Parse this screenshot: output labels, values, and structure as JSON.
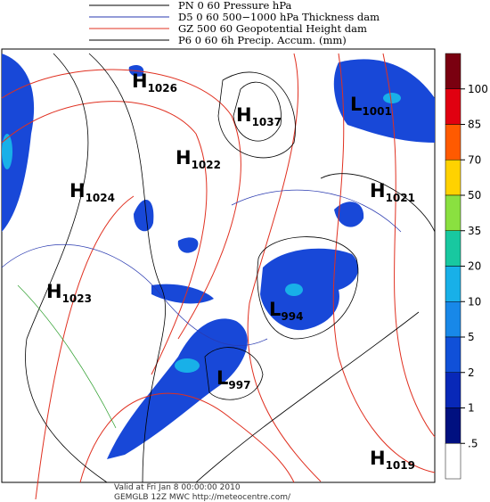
{
  "legend": [
    {
      "label": "PN 0 60 Pressure hPa",
      "color": "#000000"
    },
    {
      "label": "D5 0 60 500−1000 hPa Thickness dam",
      "color": "#2a3ab0"
    },
    {
      "label": "GZ 500 60 Geopotential Height dam",
      "color": "#e03020"
    },
    {
      "label": "P6 0 60 6h Precip. Accum. (mm)",
      "color": "#000000"
    }
  ],
  "centers": [
    {
      "letter": "H",
      "value": "1026"
    },
    {
      "letter": "H",
      "value": "1037"
    },
    {
      "letter": "L",
      "value": "1001"
    },
    {
      "letter": "H",
      "value": "1022"
    },
    {
      "letter": "H",
      "value": "1024"
    },
    {
      "letter": "H",
      "value": "1021"
    },
    {
      "letter": "H",
      "value": "1023"
    },
    {
      "letter": "L",
      "value": "994"
    },
    {
      "letter": "L",
      "value": "997"
    },
    {
      "letter": "H",
      "value": "1019"
    }
  ],
  "colorbar": {
    "ticks": [
      100,
      85,
      70,
      50,
      35,
      20,
      10,
      5,
      2,
      1,
      {
        "value": 0.5,
        "label": ".5"
      }
    ],
    "colors": [
      "#7a0010",
      "#e00010",
      "#ff5a00",
      "#ffd200",
      "#8ae040",
      "#18c8a0",
      "#18b0e8",
      "#1888e8",
      "#1050d8",
      "#0828b8",
      "#001080",
      "#ffffff"
    ]
  },
  "footer": {
    "valid": "Valid at Fri Jan  8 00:00:00 2010",
    "source": "GEMGLB 12Z MWC http://meteocentre.com/"
  }
}
